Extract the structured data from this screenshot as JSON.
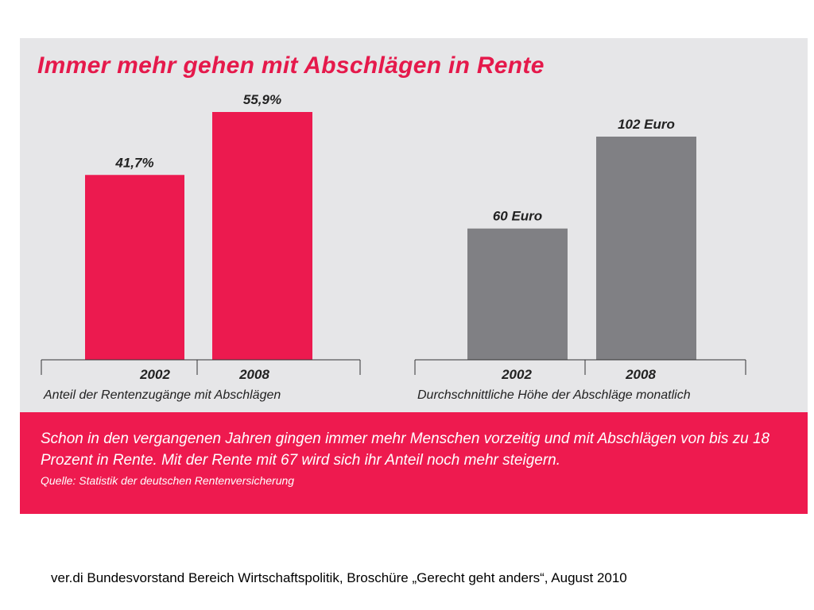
{
  "colors": {
    "accent_red": "#e5194b",
    "bar_red": "#ec1a4f",
    "bar_grey": "#808084",
    "band_red": "#ee1a4f",
    "panel_bg": "#e6e6e8"
  },
  "title": "Immer mehr gehen mit Abschlägen in Rente",
  "chart_data": [
    {
      "type": "bar",
      "title": "",
      "xlabel": "Anteil der Rentenzugänge mit Abschlägen",
      "categories": [
        "2002",
        "2008"
      ],
      "values": [
        41.7,
        55.9
      ],
      "unit": "%",
      "data_labels": [
        "41,7%",
        "55,9%"
      ],
      "ylim": [
        0,
        55.9
      ]
    },
    {
      "type": "bar",
      "title": "",
      "xlabel": "Durchschnittliche Höhe der Abschläge monatlich",
      "categories": [
        "2002",
        "2008"
      ],
      "values": [
        60,
        102
      ],
      "unit": "Euro",
      "data_labels": [
        "60 Euro",
        "102 Euro"
      ],
      "ylim": [
        0,
        102
      ]
    }
  ],
  "footer": {
    "text": "Schon in den vergangenen Jahren gingen immer mehr Menschen vorzeitig und mit Abschlägen von bis zu 18 Prozent in Rente. Mit der Rente mit 67 wird sich ihr Anteil noch mehr steigern.",
    "source": "Quelle: Statistik der deutschen Rentenversicherung"
  },
  "credit": "ver.di Bundesvorstand Bereich Wirtschaftspolitik, Broschüre „Gerecht geht anders“, August 2010"
}
